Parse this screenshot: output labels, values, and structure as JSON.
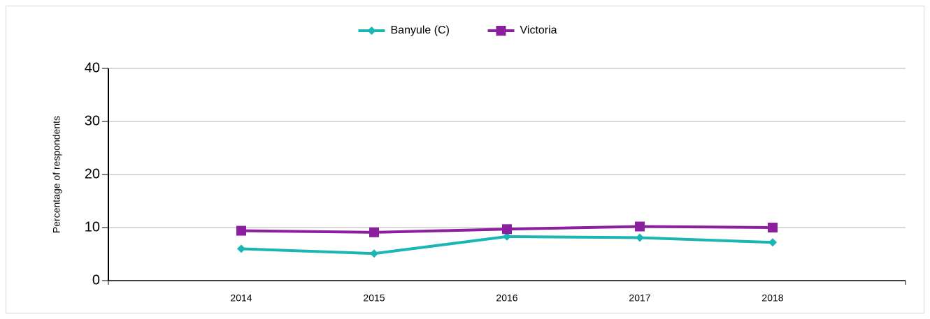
{
  "chart_data": {
    "type": "line",
    "x": [
      2014,
      2015,
      2016,
      2017,
      2018
    ],
    "xlim": [
      2013,
      2019
    ],
    "xticks": [
      2014,
      2015,
      2016,
      2017,
      2018
    ],
    "ylim": [
      0,
      40
    ],
    "yticks": [
      0,
      10,
      20,
      30,
      40
    ],
    "y_label": "Percentage of respondents",
    "grid": true,
    "legend": "top",
    "series": [
      {
        "name": "Banyule (C)",
        "color": "#1ab5b5",
        "marker": "diamond",
        "values": [
          6.0,
          5.1,
          8.3,
          8.1,
          7.2
        ]
      },
      {
        "name": "Victoria",
        "color": "#8b1fa0",
        "marker": "square",
        "values": [
          9.4,
          9.1,
          9.7,
          10.2,
          10.0
        ]
      }
    ]
  }
}
